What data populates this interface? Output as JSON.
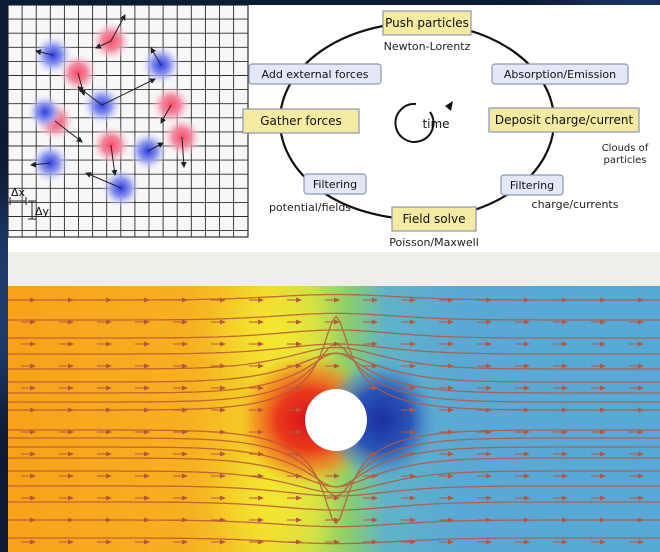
{
  "grid_panel": {
    "dx_label": "Δx",
    "dy_label": "Δy"
  },
  "pic_cycle": {
    "center_label": "time",
    "nodes": {
      "push": "Push particles",
      "absorption": "Absorption/Emission",
      "deposit": "Deposit charge/current",
      "filtering_right": "Filtering",
      "field_solve": "Field solve",
      "filtering_left": "Filtering",
      "gather": "Gather forces",
      "external": "Add external forces"
    },
    "annotations": {
      "newton_lorentz": "Newton-Lorentz",
      "clouds_line1": "Clouds of",
      "clouds_line2": "particles",
      "charge_currents": "charge/currents",
      "poisson_maxwell": "Poisson/Maxwell",
      "potential_fields": "potential/fields"
    },
    "colors": {
      "push_fill": "#f5eaa2",
      "box_fill": "#e4e8f6",
      "box_border": "#8d96b3",
      "ring": "#111111"
    }
  },
  "flow_field": {
    "colors": {
      "left": "#f7a21a",
      "mid_yellow": "#f2e52c",
      "red_hot": "#e0281a",
      "green": "#8dcf6a",
      "cool_blue": "#1e3fa8",
      "right": "#56a9d6",
      "streamline": "#b8563d"
    },
    "obstacle": "white circle"
  }
}
